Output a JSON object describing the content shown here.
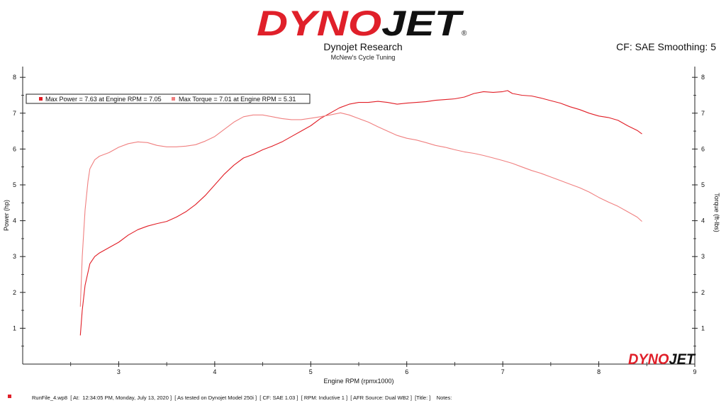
{
  "header": {
    "logo_text": "DYNOJET",
    "title": "Dynojet Research",
    "subtitle": "McNew's Cycle Tuning",
    "right_info": "CF: SAE Smoothing: 5"
  },
  "watermark": {
    "logo_text": "DYNOJET"
  },
  "footer": {
    "text": "RunFile_4.wp8  [ At:  12:34:05 PM, Monday, July 13, 2020 ]  [ As tested on Dynojet Model 250i ]  [ CF: SAE 1.03 ]  [ RPM: Inductive 1 ]  [ AFR Source: Dual WB2 ]  [Title: ]    Notes:"
  },
  "colors": {
    "power": "#e11d25",
    "torque": "#f08080",
    "brand": "#e0202a"
  },
  "chart_data": {
    "type": "line",
    "xlabel": "Engine RPM (rpmx1000)",
    "ylabel_left": "Power (hp)",
    "ylabel_right": "Torque (ft-lbs)",
    "xlim": [
      2.0,
      9.0
    ],
    "ylim": [
      0,
      8.3
    ],
    "x_ticks": [
      3,
      4,
      5,
      6,
      7,
      8,
      9
    ],
    "y_ticks": [
      1,
      2,
      3,
      4,
      5,
      6,
      7,
      8
    ],
    "grid": false,
    "legend": [
      {
        "label": "Max Power = 7.63 at Engine RPM = 7.05",
        "series": "power"
      },
      {
        "label": "Max Torque = 7.01 at Engine RPM = 5.31",
        "series": "torque"
      }
    ],
    "series": [
      {
        "key": "power",
        "axis": "left",
        "x": [
          2.6,
          2.62,
          2.65,
          2.7,
          2.75,
          2.8,
          2.9,
          3.0,
          3.1,
          3.2,
          3.3,
          3.4,
          3.5,
          3.6,
          3.7,
          3.8,
          3.9,
          4.0,
          4.1,
          4.2,
          4.3,
          4.4,
          4.5,
          4.6,
          4.7,
          4.8,
          4.9,
          5.0,
          5.1,
          5.2,
          5.3,
          5.4,
          5.5,
          5.6,
          5.7,
          5.8,
          5.9,
          6.0,
          6.1,
          6.2,
          6.3,
          6.4,
          6.5,
          6.6,
          6.7,
          6.8,
          6.9,
          7.0,
          7.05,
          7.1,
          7.2,
          7.3,
          7.4,
          7.5,
          7.6,
          7.7,
          7.8,
          7.9,
          8.0,
          8.1,
          8.2,
          8.3,
          8.4,
          8.45
        ],
        "y": [
          0.8,
          1.5,
          2.2,
          2.8,
          3.0,
          3.1,
          3.25,
          3.4,
          3.6,
          3.75,
          3.85,
          3.92,
          3.98,
          4.1,
          4.25,
          4.45,
          4.7,
          5.0,
          5.3,
          5.55,
          5.75,
          5.85,
          5.98,
          6.08,
          6.2,
          6.35,
          6.5,
          6.65,
          6.85,
          7.0,
          7.15,
          7.25,
          7.3,
          7.3,
          7.33,
          7.3,
          7.25,
          7.28,
          7.3,
          7.32,
          7.36,
          7.38,
          7.4,
          7.45,
          7.55,
          7.6,
          7.58,
          7.6,
          7.63,
          7.55,
          7.5,
          7.48,
          7.42,
          7.35,
          7.28,
          7.18,
          7.1,
          7.0,
          6.92,
          6.88,
          6.8,
          6.65,
          6.52,
          6.42
        ]
      },
      {
        "key": "torque",
        "axis": "right",
        "x": [
          2.6,
          2.62,
          2.65,
          2.68,
          2.7,
          2.75,
          2.8,
          2.9,
          3.0,
          3.1,
          3.2,
          3.3,
          3.4,
          3.5,
          3.6,
          3.7,
          3.8,
          3.9,
          4.0,
          4.1,
          4.2,
          4.3,
          4.4,
          4.5,
          4.6,
          4.7,
          4.8,
          4.9,
          5.0,
          5.1,
          5.2,
          5.31,
          5.4,
          5.5,
          5.6,
          5.7,
          5.8,
          5.9,
          6.0,
          6.1,
          6.2,
          6.3,
          6.4,
          6.5,
          6.6,
          6.7,
          6.8,
          6.9,
          7.0,
          7.1,
          7.2,
          7.3,
          7.4,
          7.5,
          7.6,
          7.7,
          7.8,
          7.9,
          8.0,
          8.1,
          8.2,
          8.3,
          8.4,
          8.45
        ],
        "y": [
          1.6,
          3.0,
          4.3,
          5.1,
          5.45,
          5.7,
          5.8,
          5.9,
          6.05,
          6.15,
          6.2,
          6.18,
          6.1,
          6.06,
          6.06,
          6.08,
          6.12,
          6.22,
          6.35,
          6.55,
          6.75,
          6.9,
          6.95,
          6.95,
          6.9,
          6.85,
          6.82,
          6.82,
          6.86,
          6.9,
          6.95,
          7.01,
          6.95,
          6.85,
          6.75,
          6.62,
          6.5,
          6.38,
          6.3,
          6.25,
          6.18,
          6.1,
          6.05,
          5.98,
          5.92,
          5.88,
          5.82,
          5.75,
          5.68,
          5.6,
          5.5,
          5.4,
          5.32,
          5.22,
          5.12,
          5.02,
          4.92,
          4.8,
          4.65,
          4.52,
          4.4,
          4.25,
          4.1,
          3.98
        ]
      }
    ]
  }
}
